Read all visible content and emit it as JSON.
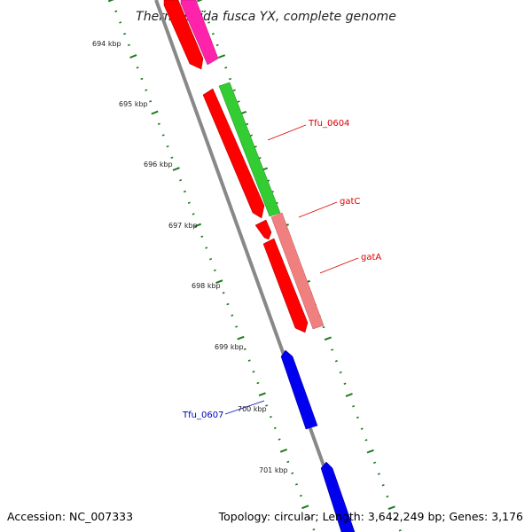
{
  "title": "Thermobifida fusca YX, complete genome",
  "ticks": [
    {
      "label": "694 kbp",
      "kbp": 694
    },
    {
      "label": "695 kbp",
      "kbp": 695
    },
    {
      "label": "696 kbp",
      "kbp": 696
    },
    {
      "label": "697 kbp",
      "kbp": 697
    },
    {
      "label": "698 kbp",
      "kbp": 698
    },
    {
      "label": "699 kbp",
      "kbp": 699
    },
    {
      "label": "700 kbp",
      "kbp": 700
    },
    {
      "label": "701 kbp",
      "kbp": 701
    }
  ],
  "gene_labels": [
    {
      "text": "Tfu_0604",
      "color": "#dd0000"
    },
    {
      "text": "gatC",
      "color": "#dd0000"
    },
    {
      "text": "gatA",
      "color": "#dd0000"
    },
    {
      "text": "Tfu_0607",
      "color": "#0000bb"
    }
  ],
  "footer": {
    "accession": "Accession: NC_007333",
    "summary": "Topology: circular; Length: 3,642,249 bp; Genes: 3,176"
  },
  "colors": {
    "backbone": "#888888",
    "tick": "#1a7a1a",
    "red_feature": "#ff0000",
    "pink_feature": "#ff22aa",
    "green_feature": "#33cc33",
    "salmon_feature": "#f08080",
    "blue_feature": "#0000ee"
  }
}
